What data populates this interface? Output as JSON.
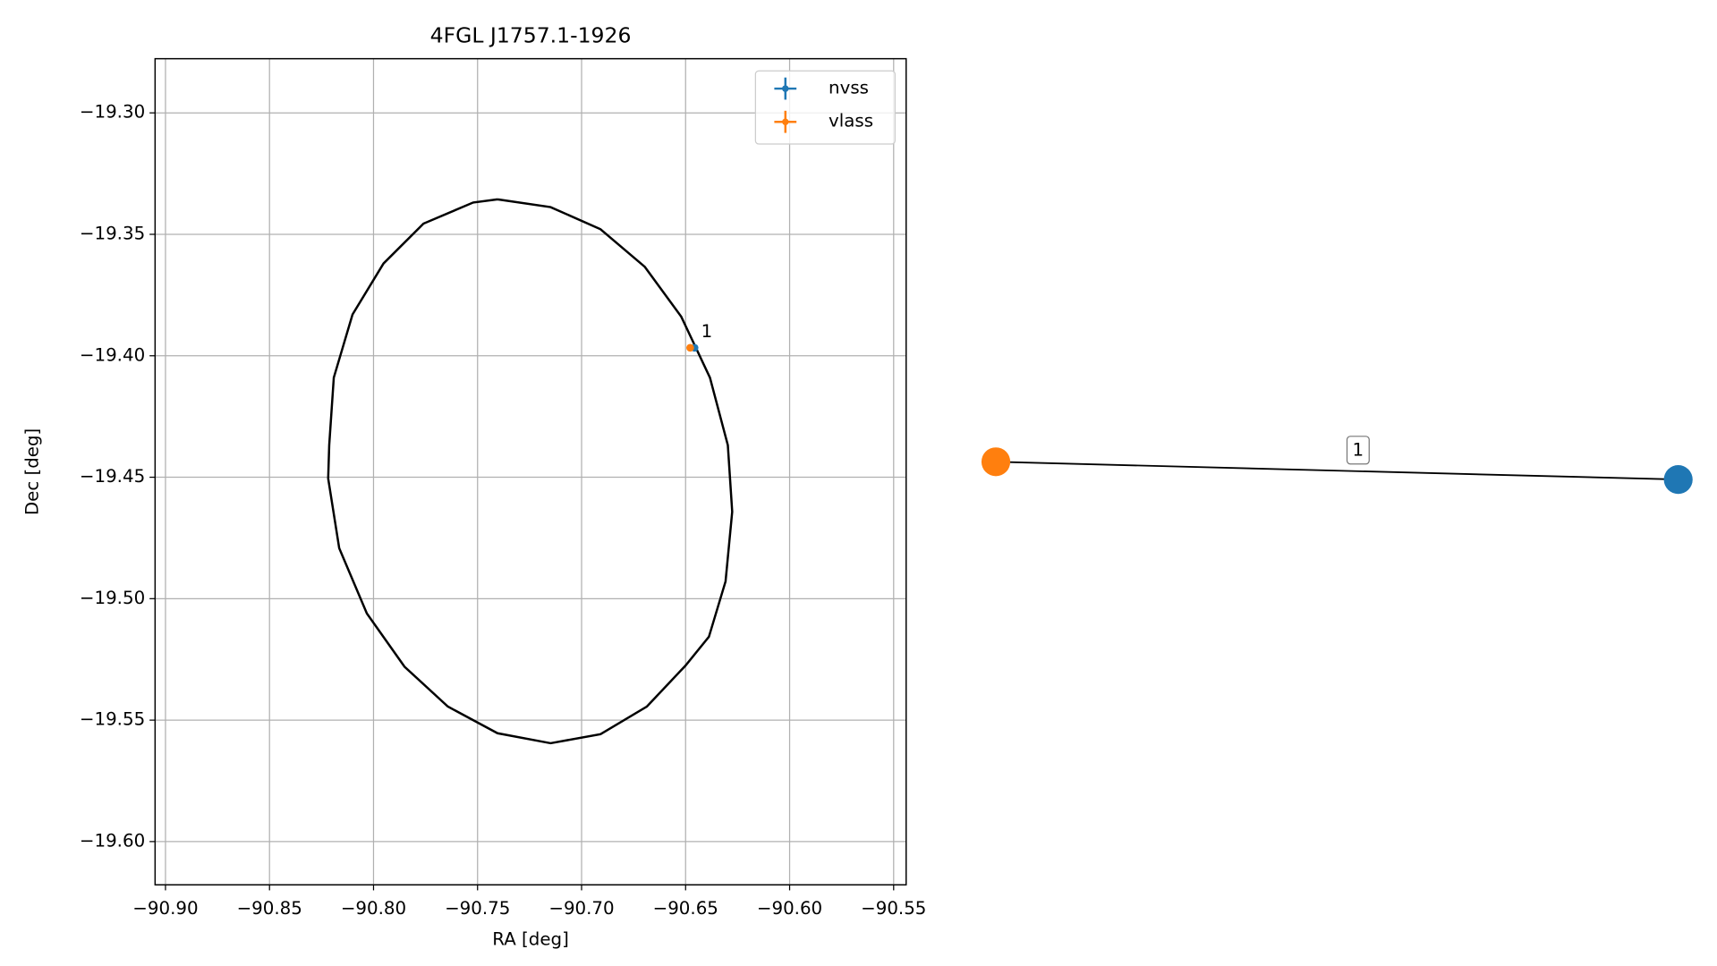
{
  "chart_data": {
    "type": "scatter",
    "title": "4FGL J1757.1-1926",
    "xlabel": "RA [deg]",
    "ylabel": "Dec [deg]",
    "xlim": [
      -90.905,
      -90.544
    ],
    "ylim": [
      -19.6178,
      -19.2777
    ],
    "xticks": [
      {
        "value": -90.9,
        "label": "−90.90"
      },
      {
        "value": -90.85,
        "label": "−90.85"
      },
      {
        "value": -90.8,
        "label": "−90.80"
      },
      {
        "value": -90.75,
        "label": "−90.75"
      },
      {
        "value": -90.7,
        "label": "−90.70"
      },
      {
        "value": -90.65,
        "label": "−90.65"
      },
      {
        "value": -90.6,
        "label": "−90.60"
      },
      {
        "value": -90.55,
        "label": "−90.55"
      }
    ],
    "yticks": [
      {
        "value": -19.3,
        "label": "−19.30"
      },
      {
        "value": -19.35,
        "label": "−19.35"
      },
      {
        "value": -19.4,
        "label": "−19.40"
      },
      {
        "value": -19.45,
        "label": "−19.45"
      },
      {
        "value": -19.5,
        "label": "−19.50"
      },
      {
        "value": -19.55,
        "label": "−19.55"
      },
      {
        "value": -19.6,
        "label": "−19.60"
      }
    ],
    "grid": true,
    "legend_position": "upper-right",
    "series": [
      {
        "name": "nvss",
        "color": "#1f77b4",
        "x": [
          -90.6457
        ],
        "y": [
          -19.3967
        ]
      },
      {
        "name": "vlass",
        "color": "#ff7f0e",
        "x": [
          -90.6478
        ],
        "y": [
          -19.3967
        ]
      }
    ],
    "ellipse": {
      "color": "#000000",
      "x": [
        -90.7404,
        -90.7149,
        -90.6909,
        -90.6696,
        -90.6521,
        -90.6383,
        -90.6297,
        -90.6276,
        -90.6308,
        -90.6388,
        -90.65,
        -90.6686,
        -90.6909,
        -90.7149,
        -90.7404,
        -90.7643,
        -90.7851,
        -90.8032,
        -90.8165,
        -90.8218,
        -90.8213,
        -90.8191,
        -90.8101,
        -90.7952,
        -90.776,
        -90.7521,
        -90.7404
      ],
      "y": [
        -19.3356,
        -19.3388,
        -19.3479,
        -19.3634,
        -19.3839,
        -19.409,
        -19.4368,
        -19.4642,
        -19.4929,
        -19.5157,
        -19.5275,
        -19.5444,
        -19.5558,
        -19.5595,
        -19.5554,
        -19.5444,
        -19.528,
        -19.5061,
        -19.4792,
        -19.4505,
        -19.4368,
        -19.409,
        -19.383,
        -19.362,
        -19.3456,
        -19.3369,
        -19.3356
      ]
    },
    "annotations": [
      {
        "text": "1",
        "x": -90.6457,
        "y": -19.3967
      }
    ]
  },
  "graph": {
    "nodes": [
      {
        "color": "#ff7f0e"
      },
      {
        "color": "#1f77b4"
      }
    ],
    "edges": [
      {
        "label": "1"
      }
    ]
  }
}
